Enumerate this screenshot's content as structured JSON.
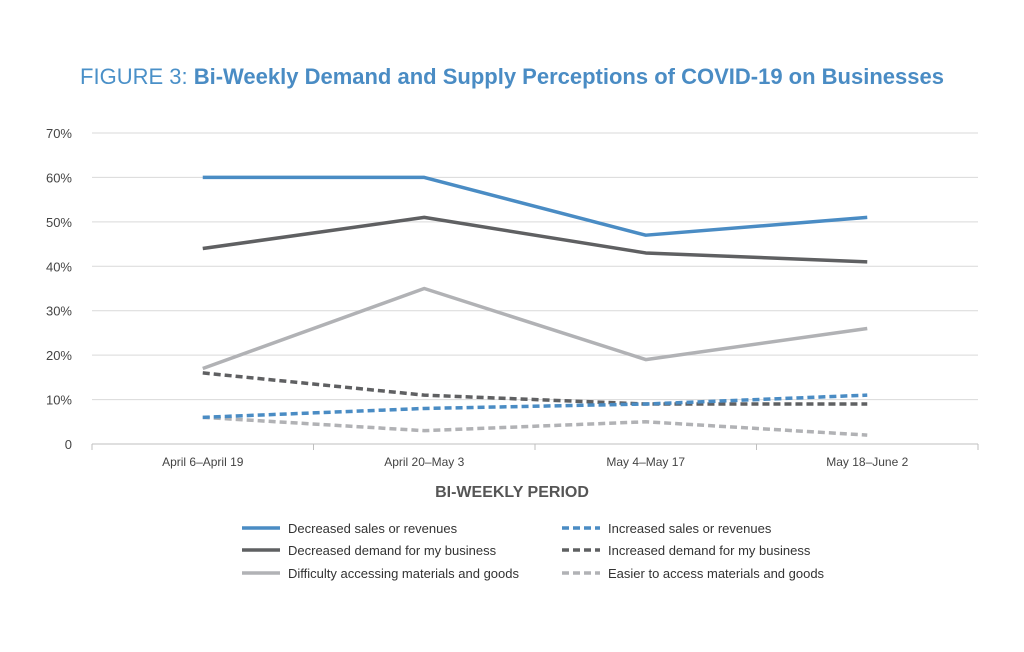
{
  "title": {
    "prefix": "FIGURE 3: ",
    "main": "Bi-Weekly Demand and Supply Perceptions of COVID-19 on Businesses"
  },
  "chart_data": {
    "type": "line",
    "title": "FIGURE 3: Bi-Weekly Demand and Supply Perceptions of COVID-19 on Businesses",
    "xlabel": "BI-WEEKLY PERIOD",
    "ylabel": "",
    "ylim": [
      0,
      70
    ],
    "yticks": [
      0,
      10,
      20,
      30,
      40,
      50,
      60,
      70
    ],
    "ytick_labels": [
      "0",
      "10%",
      "20%",
      "30%",
      "40%",
      "50%",
      "60%",
      "70%"
    ],
    "grid": true,
    "legend_placement": "bottom",
    "categories": [
      "April 6–April 19",
      "April 20–May 3",
      "May 4–May 17",
      "May 18–June 2"
    ],
    "series": [
      {
        "name": "Decreased sales or revenues",
        "values": [
          60,
          60,
          47,
          51
        ],
        "color": "#4a8cc4",
        "dash": "solid"
      },
      {
        "name": "Increased sales or revenues",
        "values": [
          6,
          8,
          9,
          11
        ],
        "color": "#4a8cc4",
        "dash": "dashed"
      },
      {
        "name": "Decreased demand for my business",
        "values": [
          44,
          51,
          43,
          41
        ],
        "color": "#5f6062",
        "dash": "solid"
      },
      {
        "name": "Increased demand for my business",
        "values": [
          16,
          11,
          9,
          9
        ],
        "color": "#5f6062",
        "dash": "dashed"
      },
      {
        "name": "Difficulty accessing materials and goods",
        "values": [
          17,
          35,
          19,
          26
        ],
        "color": "#b1b2b5",
        "dash": "solid"
      },
      {
        "name": "Easier to access materials and goods",
        "values": [
          6,
          3,
          5,
          2
        ],
        "color": "#b1b2b5",
        "dash": "dashed"
      }
    ]
  }
}
